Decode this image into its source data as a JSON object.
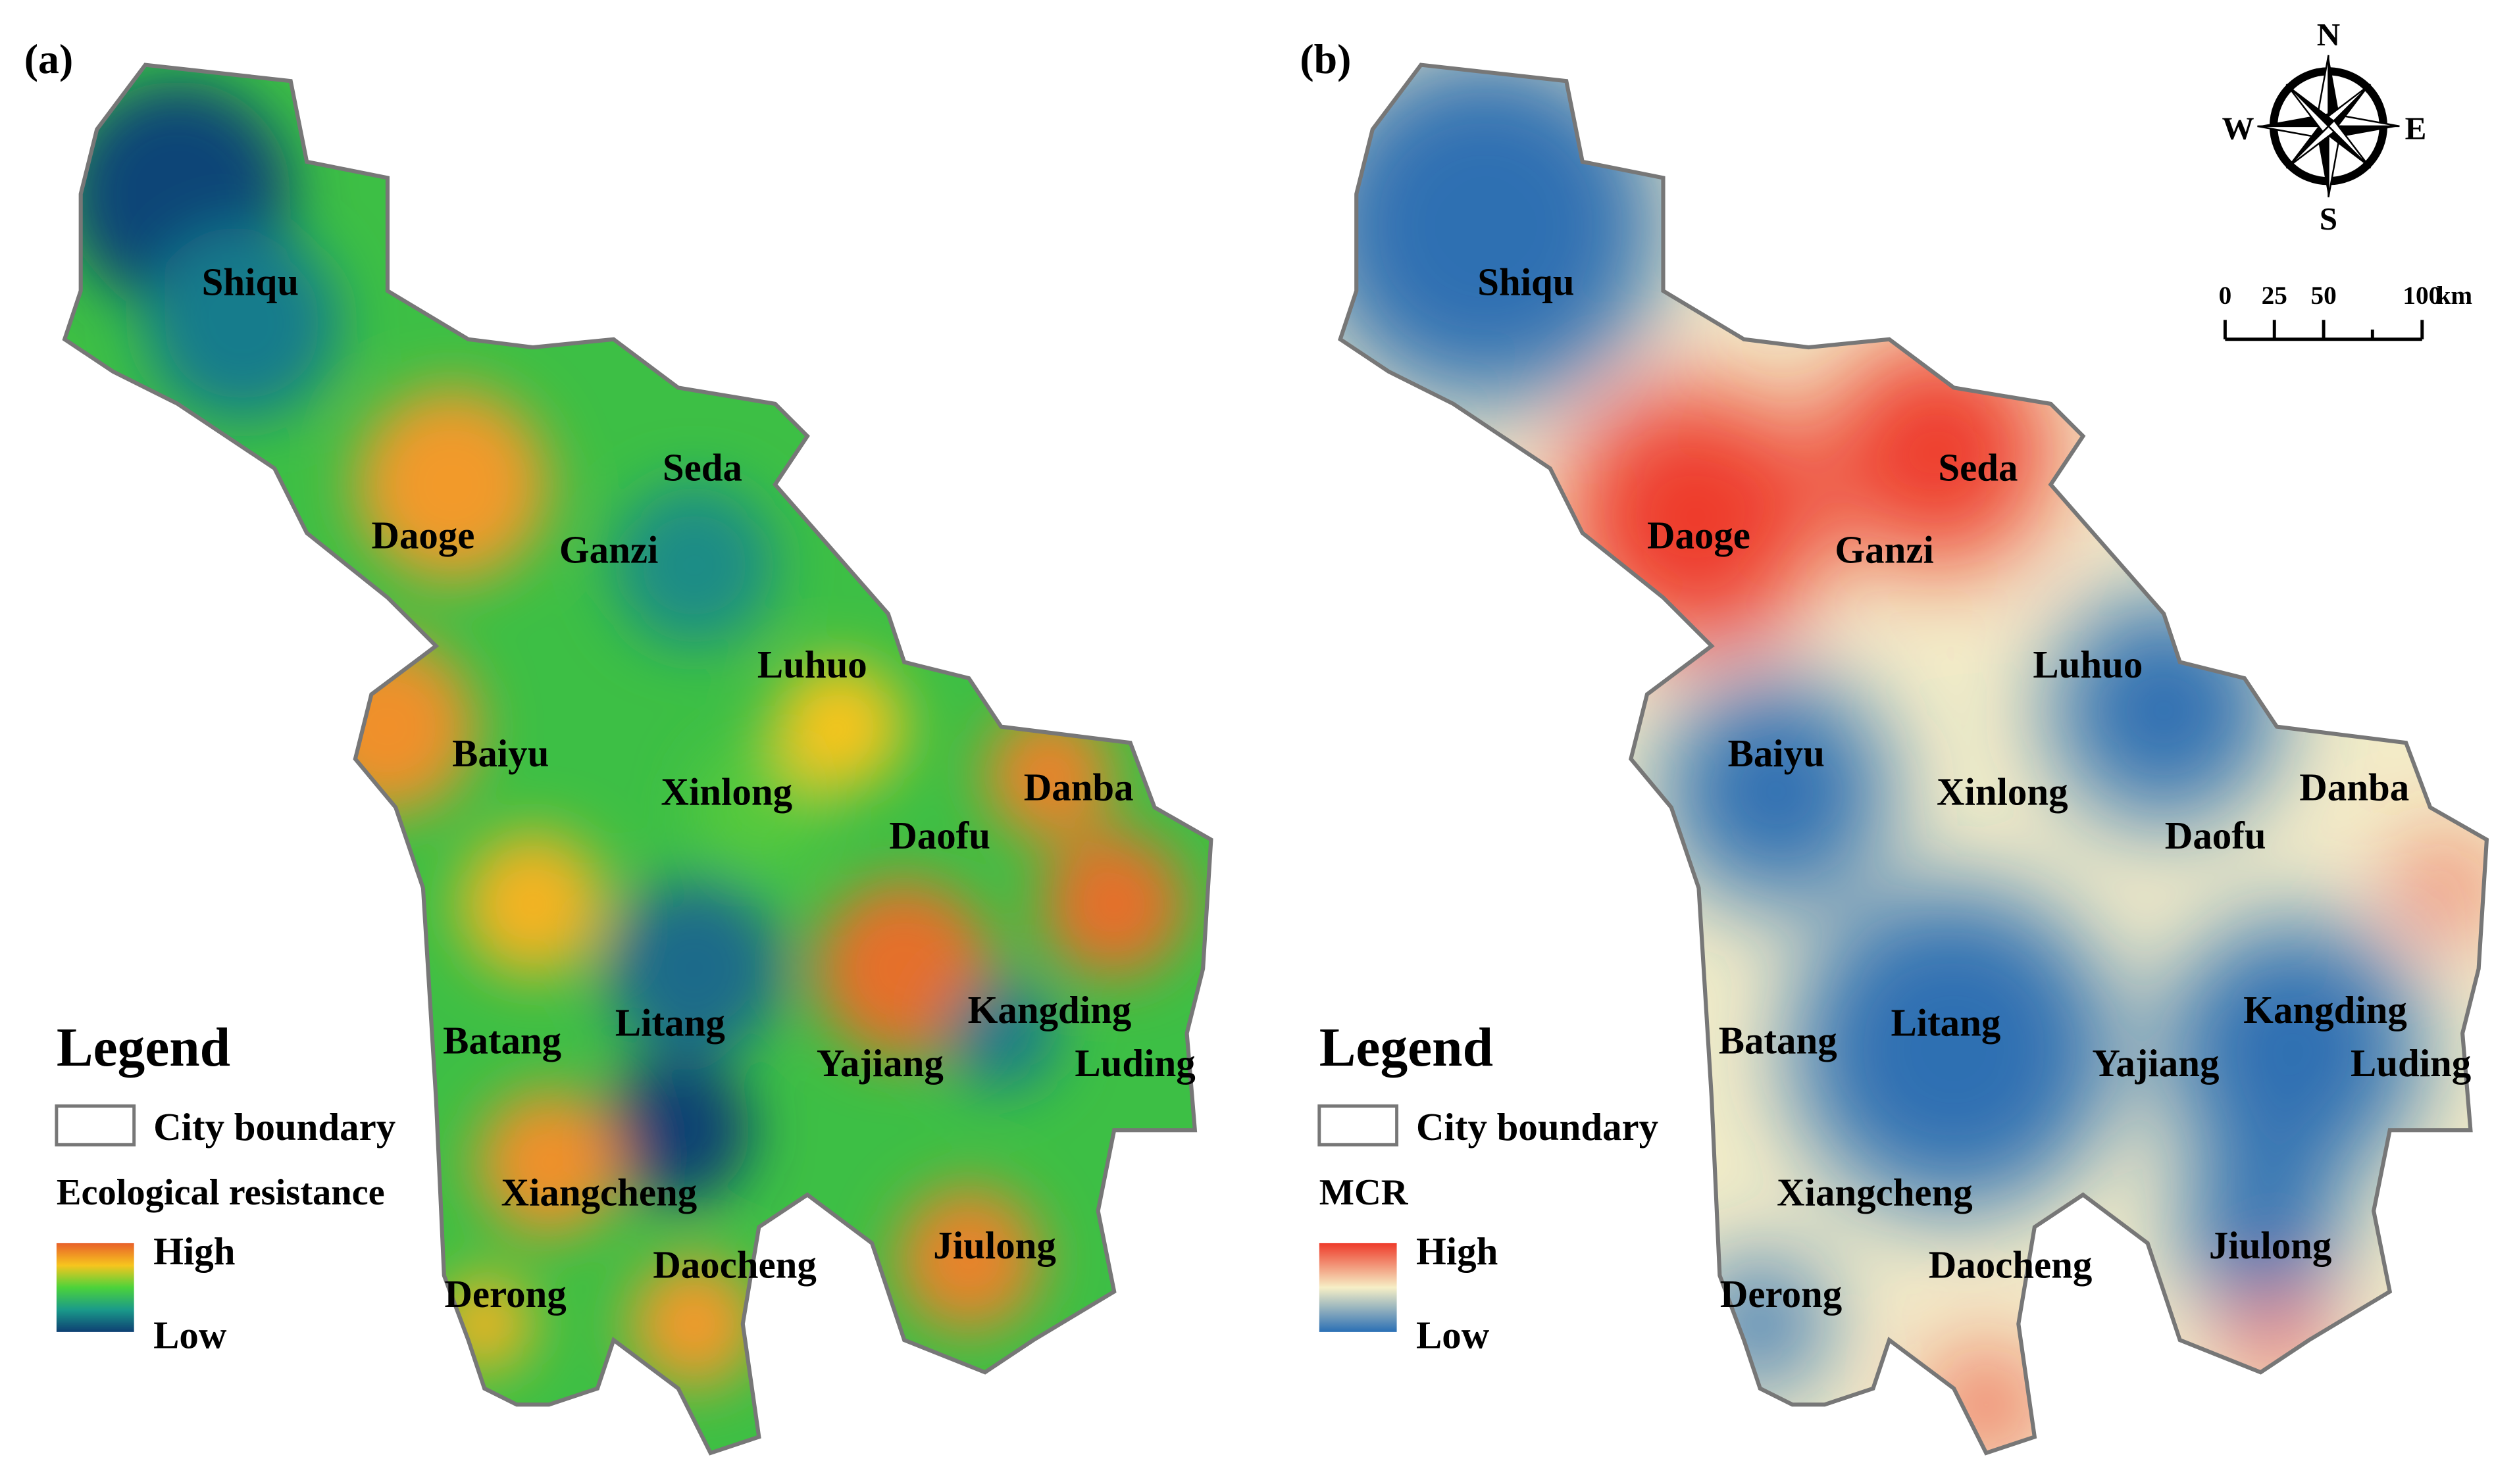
{
  "panels": [
    {
      "tag": "(a)",
      "cities": [
        "Shiqu",
        "Seda",
        "Daoge",
        "Ganzi",
        "Luhuo",
        "Baiyu",
        "Xinlong",
        "Danba",
        "Daofu",
        "Kangding",
        "Batang",
        "Litang",
        "Yajiang",
        "Luding",
        "Xiangcheng",
        "Jiulong",
        "Daocheng",
        "Derong"
      ],
      "legend": {
        "title": "Legend",
        "boundary": "City boundary",
        "variable": "Ecological resistance",
        "high": "High",
        "low": "Low"
      }
    },
    {
      "tag": "(b)",
      "cities": [
        "Shiqu",
        "Seda",
        "Daoge",
        "Ganzi",
        "Luhuo",
        "Baiyu",
        "Xinlong",
        "Danba",
        "Daofu",
        "Kangding",
        "Batang",
        "Litang",
        "Yajiang",
        "Luding",
        "Xiangcheng",
        "Jiulong",
        "Daocheng",
        "Derong"
      ],
      "legend": {
        "title": "Legend",
        "boundary": "City boundary",
        "variable": "MCR",
        "high": "High",
        "low": "Low"
      }
    }
  ],
  "compass": {
    "north": "N",
    "south": "S",
    "east": "E",
    "west": "W"
  },
  "scale_bar": {
    "ticks": [
      0,
      25,
      50,
      100
    ],
    "unit": "km"
  }
}
